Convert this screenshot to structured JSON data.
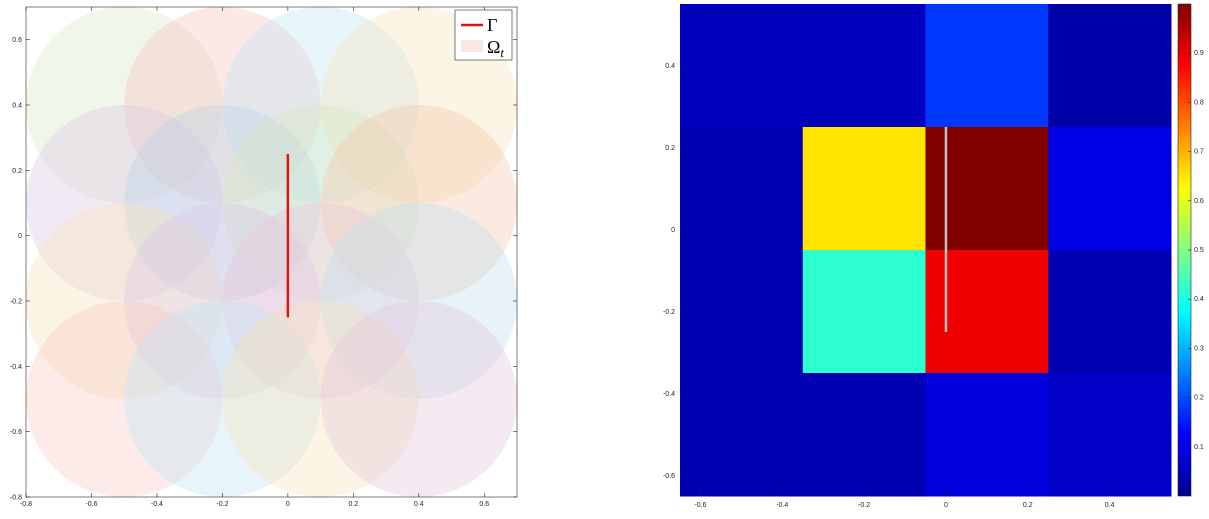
{
  "chart_data": [
    {
      "type": "scatter",
      "xlim": [
        -0.8,
        0.7
      ],
      "ylim": [
        -0.8,
        0.7
      ],
      "xticks": [
        "-0.8",
        "-0.6",
        "-0.4",
        "-0.2",
        "0",
        "0.2",
        "0.4",
        "0.6"
      ],
      "yticks": [
        "-0.8",
        "-0.6",
        "-0.4",
        "-0.2",
        "0",
        "0.2",
        "0.4",
        "0.6"
      ],
      "grid": false,
      "legend_position": "top-right",
      "legend": [
        {
          "label": "Γ",
          "color": "#e0140a",
          "kind": "line"
        },
        {
          "label": "Ω",
          "sub": "t",
          "color": "#f9e6e6",
          "kind": "patch"
        }
      ],
      "segment": {
        "name": "Γ",
        "x": [
          0,
          0
        ],
        "y": [
          -0.25,
          0.25
        ],
        "color": "#e0140a"
      },
      "circles": {
        "name": "Ω_t",
        "radius": 0.3,
        "opacity": 0.38,
        "items": [
          {
            "cx": -0.5,
            "cy": 0.4,
            "color": "#d9e8c8"
          },
          {
            "cx": -0.2,
            "cy": 0.4,
            "color": "#f6c3bd"
          },
          {
            "cx": 0.1,
            "cy": 0.4,
            "color": "#bfe4f4"
          },
          {
            "cx": 0.4,
            "cy": 0.4,
            "color": "#f8e3b8"
          },
          {
            "cx": -0.5,
            "cy": 0.1,
            "color": "#d9c9e4"
          },
          {
            "cx": -0.2,
            "cy": 0.1,
            "color": "#b9d3e8"
          },
          {
            "cx": 0.1,
            "cy": 0.1,
            "color": "#d6e7c2"
          },
          {
            "cx": 0.4,
            "cy": 0.1,
            "color": "#f4c9ae"
          },
          {
            "cx": -0.5,
            "cy": -0.2,
            "color": "#f8e3b8"
          },
          {
            "cx": -0.2,
            "cy": -0.2,
            "color": "#d9c9e4"
          },
          {
            "cx": 0.1,
            "cy": -0.2,
            "color": "#e8c4d8"
          },
          {
            "cx": 0.4,
            "cy": -0.2,
            "color": "#bfe0ef"
          },
          {
            "cx": -0.5,
            "cy": -0.5,
            "color": "#f6cbc4"
          },
          {
            "cx": -0.2,
            "cy": -0.5,
            "color": "#bfe4f4"
          },
          {
            "cx": 0.1,
            "cy": -0.5,
            "color": "#f8e3b8"
          },
          {
            "cx": 0.4,
            "cy": -0.5,
            "color": "#e6c8d9"
          }
        ]
      }
    },
    {
      "type": "heatmap",
      "colormap": "jet",
      "xlim": [
        -0.65,
        0.55
      ],
      "ylim": [
        -0.65,
        0.55
      ],
      "xticks": [
        "-0.6",
        "-0.4",
        "-0.2",
        "0",
        "0.2",
        "0.4"
      ],
      "yticks": [
        "-0.6",
        "-0.4",
        "-0.2",
        "0",
        "0.2",
        "0.4"
      ],
      "x_edges": [
        -0.65,
        -0.35,
        -0.05,
        0.25,
        0.55
      ],
      "y_edges": [
        0.55,
        0.25,
        -0.05,
        -0.35,
        -0.65
      ],
      "values": [
        [
          0.06,
          0.06,
          0.18,
          0.04
        ],
        [
          0.05,
          0.65,
          1.0,
          0.1
        ],
        [
          0.05,
          0.42,
          0.89,
          0.05
        ],
        [
          0.05,
          0.05,
          0.09,
          0.07
        ]
      ],
      "segment": {
        "x": [
          0,
          0
        ],
        "y": [
          -0.25,
          0.25
        ],
        "color": "#c0c0c0"
      },
      "colorbar": {
        "range": [
          0,
          1
        ],
        "ticks": [
          "0.1",
          "0.2",
          "0.3",
          "0.4",
          "0.5",
          "0.6",
          "0.7",
          "0.8",
          "0.9"
        ]
      }
    }
  ]
}
